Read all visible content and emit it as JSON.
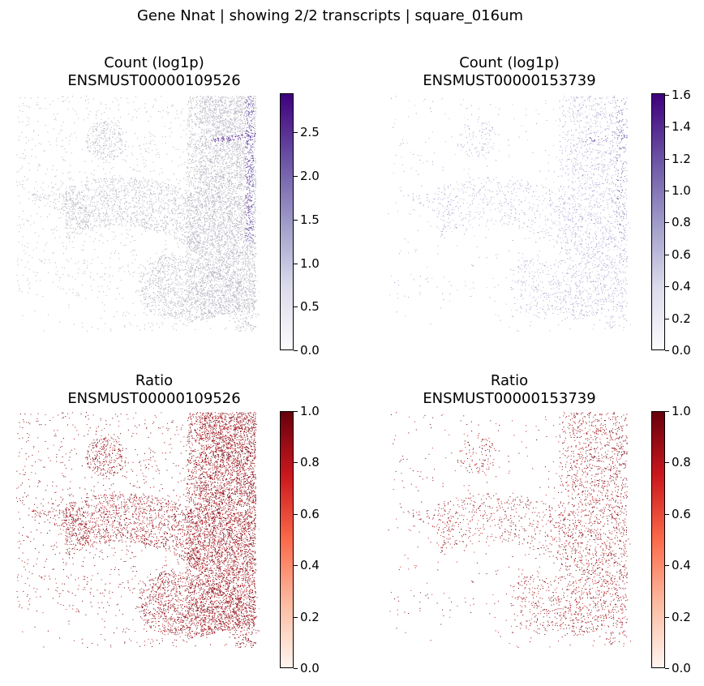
{
  "suptitle": "Gene Nnat | showing 2/2 transcripts | square_016um",
  "colors": {
    "purples": [
      "#fcfbfd",
      "#dadaeb",
      "#9e9ac8",
      "#6a51a3",
      "#3f007d"
    ],
    "reds": [
      "#fff5f0",
      "#fcbba1",
      "#fb6a4a",
      "#cb181d",
      "#67000d"
    ],
    "grey_dot": "#b4b4c0"
  },
  "chart_data": [
    {
      "type": "scatter",
      "title": "Count (log1p)",
      "subtitle": "ENSMUST00000109526",
      "colormap": "Purples",
      "color_range": [
        0,
        2.95
      ],
      "colorbar_ticks": [
        "0.0",
        "0.5",
        "1.0",
        "1.5",
        "2.0",
        "2.5"
      ],
      "grid": false,
      "axes_visible": false
    },
    {
      "type": "scatter",
      "title": "Count (log1p)",
      "subtitle": "ENSMUST00000153739",
      "colormap": "Purples",
      "color_range": [
        0,
        1.61
      ],
      "colorbar_ticks": [
        "0.0",
        "0.2",
        "0.4",
        "0.6",
        "0.8",
        "1.0",
        "1.2",
        "1.4",
        "1.6"
      ],
      "grid": false,
      "axes_visible": false
    },
    {
      "type": "scatter",
      "title": "Ratio",
      "subtitle": "ENSMUST00000109526",
      "colormap": "Reds",
      "color_range": [
        0,
        1
      ],
      "colorbar_ticks": [
        "0.0",
        "0.2",
        "0.4",
        "0.6",
        "0.8",
        "1.0"
      ],
      "grid": false,
      "axes_visible": false
    },
    {
      "type": "scatter",
      "title": "Ratio",
      "subtitle": "ENSMUST00000153739",
      "colormap": "Reds",
      "color_range": [
        0,
        1
      ],
      "colorbar_ticks": [
        "0.0",
        "0.2",
        "0.4",
        "0.6",
        "0.8",
        "1.0"
      ],
      "grid": false,
      "axes_visible": false
    }
  ]
}
